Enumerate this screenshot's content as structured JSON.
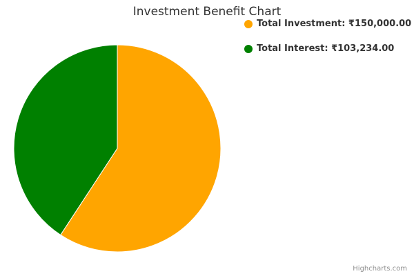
{
  "chart_data": {
    "type": "pie",
    "title": "Investment Benefit Chart",
    "series": [
      {
        "name": "Investment Benefit",
        "data": [
          {
            "label": "Total Investment",
            "value": 150000,
            "color": "#FFA500"
          },
          {
            "label": "Total Interest",
            "value": 103234,
            "color": "#008000"
          }
        ]
      }
    ],
    "legend": {
      "placement": "top-right",
      "items": [
        {
          "text": "Total Investment: ₹150,000.00",
          "color": "#FFA500"
        },
        {
          "text": "Total Interest: ₹103,234.00",
          "color": "#008000"
        }
      ]
    }
  },
  "credits": "Highcharts.com"
}
